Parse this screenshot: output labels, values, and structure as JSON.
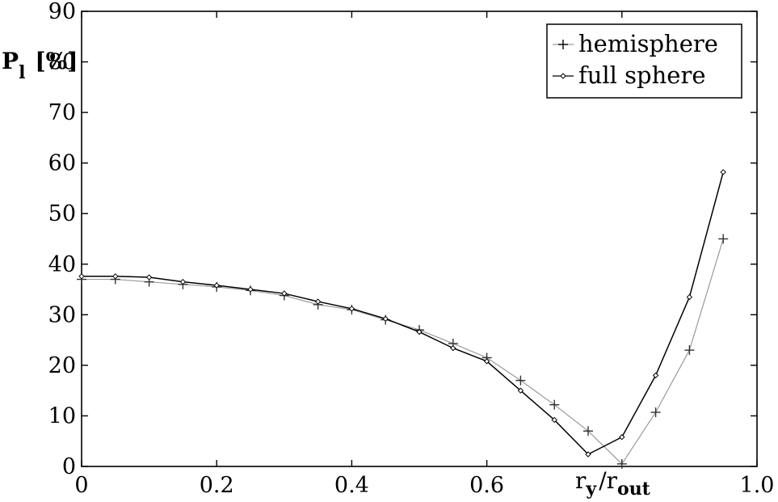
{
  "chart_data": {
    "type": "line",
    "title": "",
    "xlabel": "r_y / r_out",
    "ylabel": "P_l [%]",
    "xlim": [
      0,
      1.0
    ],
    "ylim": [
      0,
      90
    ],
    "grid": false,
    "legend_position": "top-right",
    "x_tick_labels": [
      "0",
      "0.2",
      "0.4",
      "0.6",
      "1.0"
    ],
    "y_tick_labels": [
      "0",
      "10",
      "20",
      "30",
      "40",
      "50",
      "60",
      "70",
      "80",
      "90"
    ],
    "x": [
      0,
      0.05,
      0.1,
      0.15,
      0.2,
      0.25,
      0.3,
      0.35,
      0.4,
      0.45,
      0.5,
      0.55,
      0.6,
      0.65,
      0.7,
      0.75,
      0.8,
      0.85,
      0.9,
      0.95
    ],
    "series": [
      {
        "name": "hemisphere",
        "marker": "plus",
        "color": "#9a9a9a",
        "values": [
          37.0,
          37.0,
          36.5,
          36.0,
          35.5,
          34.8,
          33.8,
          32.0,
          31.0,
          29.0,
          27.0,
          24.3,
          21.5,
          17.0,
          12.2,
          7.0,
          0.5,
          10.7,
          23.0,
          45.0
        ]
      },
      {
        "name": "full sphere",
        "marker": "diamond",
        "color": "#000000",
        "values": [
          37.6,
          37.6,
          37.4,
          36.5,
          35.8,
          35.0,
          34.2,
          32.6,
          31.2,
          29.2,
          26.6,
          23.4,
          20.8,
          15.0,
          9.2,
          2.4,
          5.8,
          18.0,
          33.5,
          58.2
        ]
      }
    ],
    "axis_label_parts": {
      "x_main": "r",
      "x_sub": "y",
      "x_slash": "/",
      "x_main2": "r",
      "x_sub2": "out",
      "y_main": "P",
      "y_sub": "l",
      "y_unit": "[%]"
    }
  }
}
